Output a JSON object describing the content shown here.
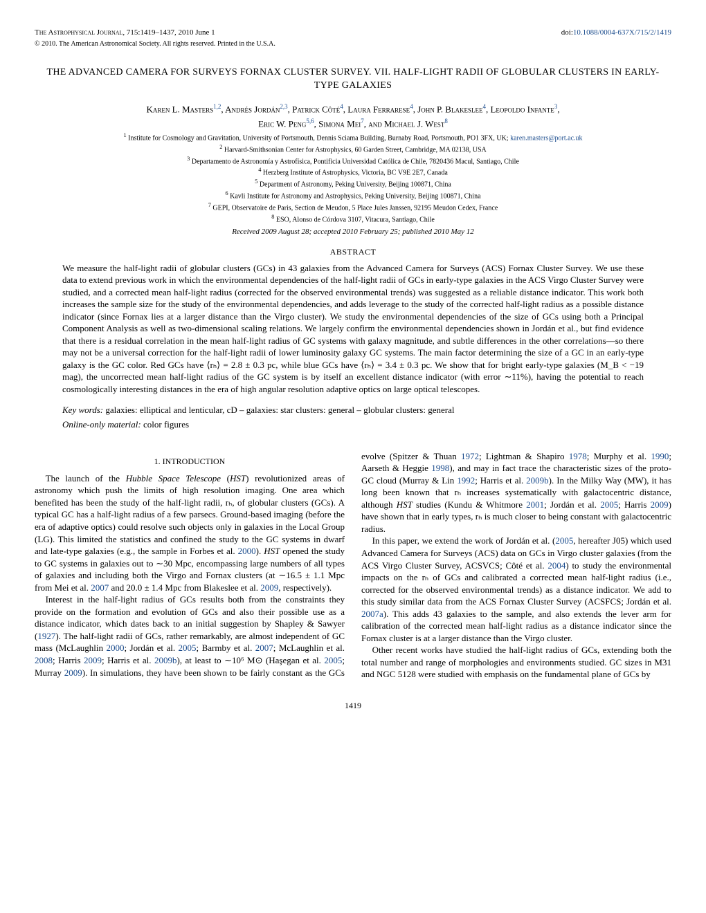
{
  "header": {
    "journal": "The Astrophysical Journal",
    "citation": ", 715:1419–1437, 2010 June 1",
    "copyright": "© 2010. The American Astronomical Society. All rights reserved. Printed in the U.S.A.",
    "doi_label": "doi:",
    "doi": "10.1088/0004-637X/715/2/1419"
  },
  "title": "THE ADVANCED CAMERA FOR SURVEYS FORNAX CLUSTER SURVEY. VII. HALF-LIGHT RADII OF GLOBULAR CLUSTERS IN EARLY-TYPE GALAXIES",
  "authors_line1": "Karen L. Masters",
  "authors_line1_sup1": "1,2",
  "authors_line1_b": ", Andrés Jordán",
  "authors_line1_sup2": "2,3",
  "authors_line1_c": ", Patrick Côté",
  "authors_line1_sup3": "4",
  "authors_line1_d": ", Laura Ferrarese",
  "authors_line1_sup4": "4",
  "authors_line1_e": ", John P. Blakeslee",
  "authors_line1_sup5": "4",
  "authors_line1_f": ", Leopoldo Infante",
  "authors_line1_sup6": "3",
  "authors_line1_g": ",",
  "authors_line2_a": "Eric W. Peng",
  "authors_line2_sup1": "5,6",
  "authors_line2_b": ", Simona Mei",
  "authors_line2_sup2": "7",
  "authors_line2_c": ", and Michael J. West",
  "authors_line2_sup3": "8",
  "affiliations": {
    "a1": "Institute for Cosmology and Gravitation, University of Portsmouth, Dennis Sciama Building, Burnaby Road, Portsmouth, PO1 3FX, UK; ",
    "a1_email": "karen.masters@port.ac.uk",
    "a2": "Harvard-Smithsonian Center for Astrophysics, 60 Garden Street, Cambridge, MA 02138, USA",
    "a3": "Departamento de Astronomía y Astrofísica, Pontificia Universidad Católica de Chile, 7820436 Macul, Santiago, Chile",
    "a4": "Herzberg Institute of Astrophysics, Victoria, BC V9E 2E7, Canada",
    "a5": "Department of Astronomy, Peking University, Beijing 100871, China",
    "a6": "Kavli Institute for Astronomy and Astrophysics, Peking University, Beijing 100871, China",
    "a7": "GEPI, Observatoire de Paris, Section de Meudon, 5 Place Jules Janssen, 92195 Meudon Cedex, France",
    "a8": "ESO, Alonso de Córdova 3107, Vitacura, Santiago, Chile"
  },
  "dates": "Received 2009 August 28; accepted 2010 February 25; published 2010 May 12",
  "abstract_heading": "ABSTRACT",
  "abstract_body": "We measure the half-light radii of globular clusters (GCs) in 43 galaxies from the Advanced Camera for Surveys (ACS) Fornax Cluster Survey. We use these data to extend previous work in which the environmental dependencies of the half-light radii of GCs in early-type galaxies in the ACS Virgo Cluster Survey were studied, and a corrected mean half-light radius (corrected for the observed environmental trends) was suggested as a reliable distance indicator. This work both increases the sample size for the study of the environmental dependencies, and adds leverage to the study of the corrected half-light radius as a possible distance indicator (since Fornax lies at a larger distance than the Virgo cluster). We study the environmental dependencies of the size of GCs using both a Principal Component Analysis as well as two-dimensional scaling relations. We largely confirm the environmental dependencies shown in Jordán et al., but find evidence that there is a residual correlation in the mean half-light radius of GC systems with galaxy magnitude, and subtle differences in the other correlations—so there may not be a universal correction for the half-light radii of lower luminosity galaxy GC systems. The main factor determining the size of a GC in an early-type galaxy is the GC color. Red GCs have ⟨rₕ⟩ = 2.8 ± 0.3 pc, while blue GCs have ⟨rₕ⟩ = 3.4 ± 0.3 pc. We show that for bright early-type galaxies (M_B < −19 mag), the uncorrected mean half-light radius of the GC system is by itself an excellent distance indicator (with error ∼11%), having the potential to reach cosmologically interesting distances in the era of high angular resolution adaptive optics on large optical telescopes.",
  "keywords_label": "Key words:",
  "keywords": " galaxies: elliptical and lenticular, cD – galaxies: star clusters: general – globular clusters: general",
  "online_label": "Online-only material:",
  "online": " color figures",
  "section1_heading": "1. INTRODUCTION",
  "col1_p1a": "The launch of the ",
  "col1_p1b_italic": "Hubble Space Telescope",
  "col1_p1c": " (",
  "col1_p1d_italic": "HST",
  "col1_p1e": ") revolutionized areas of astronomy which push the limits of high resolution imaging. One area which benefited has been the study of the half-light radii, rₕ, of globular clusters (GCs). A typical GC has a half-light radius of a few parsecs. Ground-based imaging (before the era of adaptive optics) could resolve such objects only in galaxies in the Local Group (LG). This limited the statistics and confined the study to the GC systems in dwarf and late-type galaxies (e.g., the sample in Forbes et al. ",
  "col1_p1_cite1": "2000",
  "col1_p1f": "). ",
  "col1_p1g_italic": "HST",
  "col1_p1h": " opened the study to GC systems in galaxies out to ∼30 Mpc, encompassing large numbers of all types of galaxies and including both the Virgo and Fornax clusters (at ∼16.5 ± 1.1 Mpc from Mei et al. ",
  "col1_p1_cite2": "2007",
  "col1_p1i": " and 20.0 ± 1.4 Mpc from Blakeslee et al. ",
  "col1_p1_cite3": "2009",
  "col1_p1j": ", respectively).",
  "col1_p2a": "Interest in the half-light radius of GCs results both from the constraints they provide on the formation and evolution of GCs and also their possible use as a distance indicator, which dates back to an initial suggestion by Shapley & Sawyer (",
  "col1_p2_cite1": "1927",
  "col1_p2b": "). The half-light radii of GCs, rather remarkably, are almost independent of GC mass (McLaughlin ",
  "col1_p2_cite2": "2000",
  "col1_p2c": "; Jordán et al. ",
  "col1_p2_cite3": "2005",
  "col1_p2d": "; Barmby et al. ",
  "col1_p2_cite4": "2007",
  "col1_p2e": "; McLaughlin et al. ",
  "col1_p2_cite5": "2008",
  "col1_p2f": "; Harris ",
  "col1_p2_cite6": "2009",
  "col1_p2g": "; Harris et al. ",
  "col1_p2_cite7": "2009b",
  "col1_p2h": "), at least to ∼10⁶ M⊙ (Haşegan et al. ",
  "col1_p2_cite8": "2005",
  "col1_p2i": "; Murray ",
  "col1_p2_cite9": "2009",
  "col1_p2j": "). In simulations, they have been shown to be fairly",
  "col2_p1a": "constant as the GCs evolve (Spitzer & Thuan ",
  "col2_p1_cite1": "1972",
  "col2_p1b": "; Lightman & Shapiro ",
  "col2_p1_cite2": "1978",
  "col2_p1c": "; Murphy et al. ",
  "col2_p1_cite3": "1990",
  "col2_p1d": "; Aarseth & Heggie ",
  "col2_p1_cite4": "1998",
  "col2_p1e": "), and may in fact trace the characteristic sizes of the proto-GC cloud (Murray & Lin ",
  "col2_p1_cite5": "1992",
  "col2_p1f": "; Harris et al. ",
  "col2_p1_cite6": "2009b",
  "col2_p1g": "). In the Milky Way (MW), it has long been known that rₕ increases systematically with galactocentric distance, although ",
  "col2_p1h_italic": "HST",
  "col2_p1i": " studies (Kundu & Whitmore ",
  "col2_p1_cite7": "2001",
  "col2_p1j": "; Jordán et al. ",
  "col2_p1_cite8": "2005",
  "col2_p1k": "; Harris ",
  "col2_p1_cite9": "2009",
  "col2_p1l": ") have shown that in early types, rₕ is much closer to being constant with galactocentric radius.",
  "col2_p2a": "In this paper, we extend the work of Jordán et al. (",
  "col2_p2_cite1": "2005",
  "col2_p2b": ", hereafter J05) which used Advanced Camera for Surveys (ACS) data on GCs in Virgo cluster galaxies (from the ACS Virgo Cluster Survey, ACSVCS; Côté et al. ",
  "col2_p2_cite2": "2004",
  "col2_p2c": ") to study the environmental impacts on the rₕ of GCs and calibrated a corrected mean half-light radius (i.e., corrected for the observed environmental trends) as a distance indicator. We add to this study similar data from the ACS Fornax Cluster Survey (ACSFCS; Jordán et al. ",
  "col2_p2_cite3": "2007a",
  "col2_p2d": "). This adds 43 galaxies to the sample, and also extends the lever arm for calibration of the corrected mean half-light radius as a distance indicator since the Fornax cluster is at a larger distance than the Virgo cluster.",
  "col2_p3": "Other recent works have studied the half-light radius of GCs, extending both the total number and range of morphologies and environments studied. GC sizes in M31 and NGC 5128 were studied with emphasis on the fundamental plane of GCs by",
  "page_number": "1419"
}
